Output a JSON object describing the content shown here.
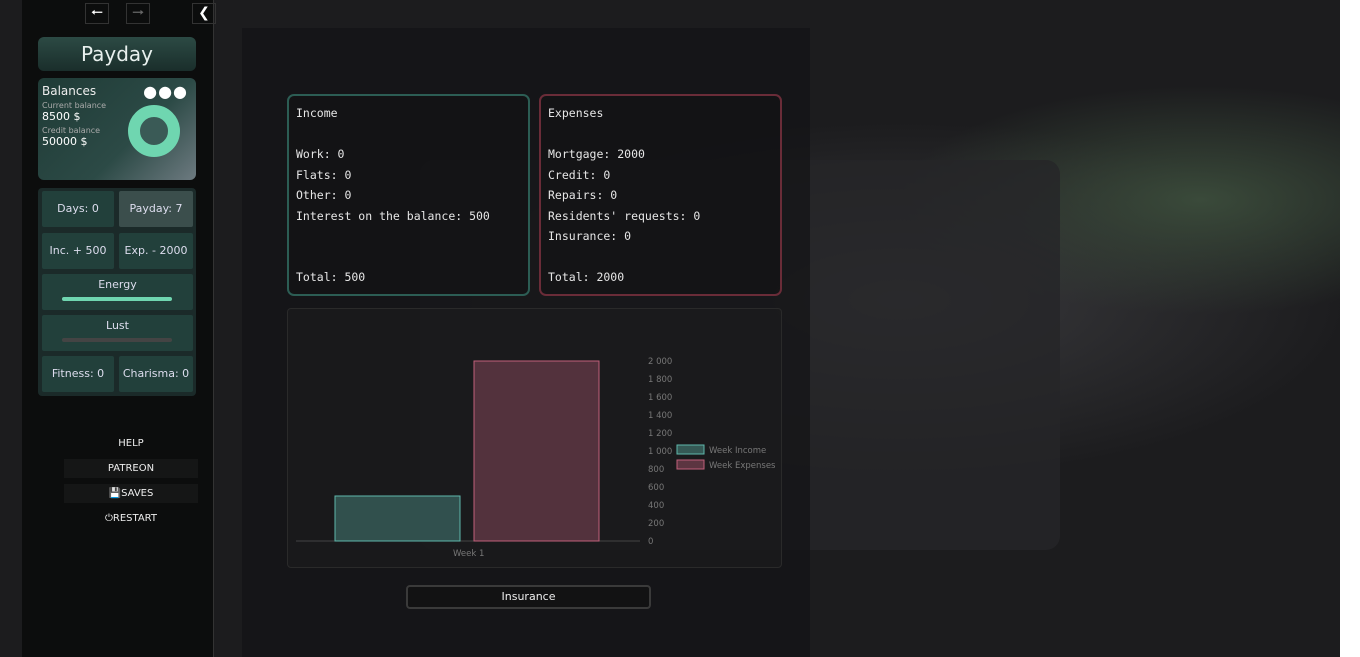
{
  "nav": {
    "back_icon": "arrow-left",
    "forward_icon": "arrow-right",
    "collapse_icon": "chevron-left"
  },
  "sidebar": {
    "title": "Payday",
    "balances": {
      "title": "Balances",
      "current_label": "Current balance",
      "current_value": "8500 $",
      "credit_label": "Credit balance",
      "credit_value": "50000 $"
    },
    "stats": {
      "days": "Days: 0",
      "payday": "Payday: 7",
      "income": "Inc. + 500",
      "expenses": "Exp. - 2000",
      "energy": "Energy",
      "energy_level": 1.0,
      "lust": "Lust",
      "lust_level": 0,
      "fitness": "Fitness: 0",
      "charisma": "Charisma: 0"
    },
    "menu": {
      "help": "HELP",
      "patreon": "PATREON",
      "saves": "SAVES",
      "restart": "RESTART"
    }
  },
  "income": {
    "title": "Income",
    "lines": [
      "Work: 0",
      "Flats: 0",
      "Other: 0",
      "Interest on the balance: 500"
    ],
    "total": "Total: 500"
  },
  "expenses": {
    "title": "Expenses",
    "lines": [
      "Mortgage: 2000",
      "Credit: 0",
      "Repairs: 0",
      "Residents' requests: 0",
      "Insurance: 0"
    ],
    "total": "Total: 2000"
  },
  "insurance_button": "Insurance",
  "chart_data": {
    "type": "bar",
    "categories": [
      "Week 1"
    ],
    "series": [
      {
        "name": "Week Income",
        "values": [
          500
        ],
        "color": "#5fb8ac"
      },
      {
        "name": "Week Expenses",
        "values": [
          2000
        ],
        "color": "#c0607a"
      }
    ],
    "yticks": [
      "0",
      "200",
      "400",
      "600",
      "800",
      "1 000",
      "1 200",
      "1 400",
      "1 600",
      "1 800",
      "2 000"
    ],
    "ylim": [
      0,
      2000
    ],
    "legend": "right"
  }
}
